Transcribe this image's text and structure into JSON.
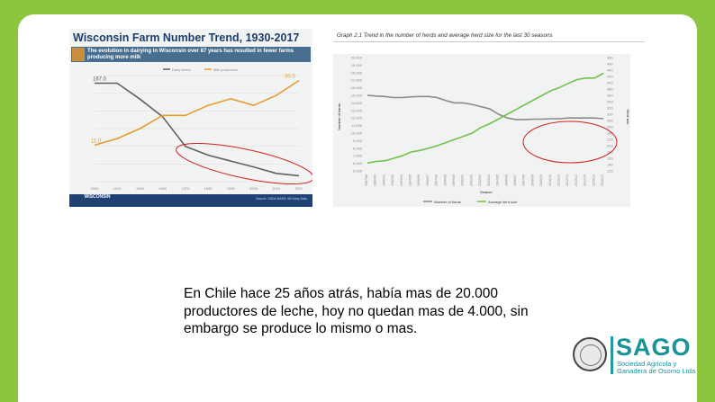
{
  "chart_left": {
    "title": "Wisconsin Farm Number Trend, 1930-2017",
    "banner_text": "The evolution in dairying in Wisconsin over 87 years has resulted in fewer farms producing more milk",
    "footer_logo": "WISCONSIN",
    "footer_source": "Source: USDA NASS, WI Dairy Data",
    "start_value_label": "167.0",
    "low_value_label": "11.0",
    "end_value_label": "30.5",
    "legend": [
      "Dairy farms",
      "Milk production"
    ],
    "colors": {
      "farms": "#606060",
      "milk": "#e69b2e",
      "highlight": "#d11f1f"
    },
    "chart_data": {
      "type": "line",
      "x": [
        1930,
        1940,
        1950,
        1960,
        1970,
        1980,
        1990,
        2000,
        2010,
        2017
      ],
      "x_ticks": [
        "1930",
        "1940",
        "1950",
        "1960",
        "1970",
        "1980",
        "1990",
        "2000",
        "2010",
        "2017"
      ],
      "series": [
        {
          "name": "Dairy farms",
          "values": [
            167,
            167,
            140,
            110,
            60,
            45,
            35,
            25,
            14,
            10
          ]
        },
        {
          "name": "Milk production",
          "values": [
            11,
            13,
            16,
            20,
            20,
            23,
            25,
            23,
            26,
            30.5
          ]
        }
      ],
      "ylim": [
        0,
        180
      ],
      "y2lim": [
        0,
        32
      ]
    }
  },
  "chart_right": {
    "title": "Graph 2.1  Trend in the number of herds and average herd size for the last 30 seasons",
    "ylabel": "Number of herds",
    "y2label": "Herd size",
    "xlabel": "Season",
    "legend": [
      "Number of herds",
      "Average herd size"
    ],
    "colors": {
      "herds": "#8a8a8a",
      "size": "#70c24a",
      "highlight": "#d11f1f"
    },
    "chart_data": {
      "type": "line",
      "y_ticks": [
        "20,000",
        "19,000",
        "18,000",
        "17,000",
        "16,000",
        "15,000",
        "14,000",
        "13,000",
        "12,000",
        "11,000",
        "10,000",
        "9,000",
        "8,000",
        "7,000",
        "6,000",
        "5,000"
      ],
      "y2_ticks": [
        "480",
        "460",
        "440",
        "420",
        "400",
        "380",
        "360",
        "340",
        "320",
        "300",
        "280",
        "260",
        "240",
        "220",
        "200",
        "180",
        "160",
        "140",
        "120"
      ],
      "x_ticks": [
        "1987/88",
        "1988/89",
        "1990/91",
        "1992/93",
        "1993/94",
        "1994/95",
        "1995/96",
        "1996/97",
        "1997/98",
        "1998/99",
        "1999/00",
        "2000/01",
        "2001/02",
        "2002/03",
        "2003/04",
        "2004/05",
        "2005/06",
        "2006/07",
        "2007/08",
        "2008/09",
        "2009/10",
        "2010/11",
        "2011/12",
        "2012/13",
        "2013/14",
        "2014/15",
        "2015/16",
        "2016/17"
      ],
      "series": [
        {
          "name": "Number of herds",
          "values": [
            15000,
            14900,
            14850,
            14700,
            14700,
            14800,
            14850,
            14850,
            14700,
            14300,
            14000,
            14000,
            13800,
            13500,
            13200,
            12500,
            12000,
            11800,
            11800,
            11850,
            11850,
            11900,
            11900,
            12000,
            12000,
            12000,
            12000,
            11900
          ]
        },
        {
          "name": "Average herd size",
          "values": [
            145,
            150,
            152,
            160,
            168,
            180,
            185,
            192,
            200,
            210,
            220,
            230,
            240,
            258,
            270,
            285,
            300,
            315,
            330,
            345,
            360,
            375,
            385,
            398,
            410,
            415,
            415,
            430
          ]
        }
      ],
      "ylim": [
        5000,
        20000
      ],
      "y2lim": [
        120,
        480
      ]
    }
  },
  "statement": "En Chile hace 25 años atrás, había mas de 20.000 productores de leche, hoy no quedan mas de 4.000, sin embargo se produce lo mismo o mas.",
  "logo": {
    "word": "SAGO",
    "subtitle_line1": "Sociedad Agrícola y",
    "subtitle_line2": "Ganadera de Osorno Ltda",
    "color": "#17939a"
  }
}
